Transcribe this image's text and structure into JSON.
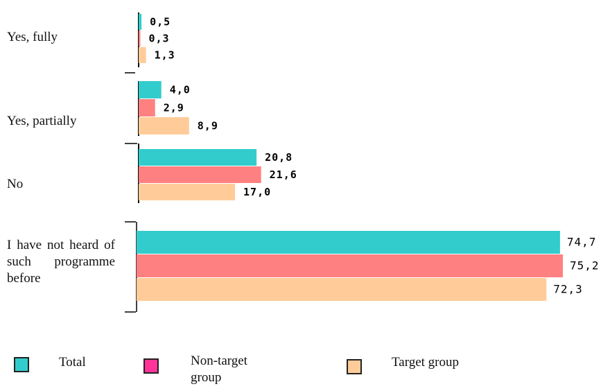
{
  "chart_data": {
    "type": "bar",
    "orientation": "horizontal",
    "categories": [
      "Yes, fully",
      "Yes, partially",
      "No",
      "I have not heard of such programme before"
    ],
    "series": [
      {
        "name": "Total",
        "color": "#33cccc",
        "legend_color": "#33cccc",
        "values": [
          0.5,
          4.0,
          20.8,
          74.7
        ],
        "value_labels": [
          "0,5",
          "4,0",
          "20,8",
          "74,7"
        ]
      },
      {
        "name": "Non-target group",
        "color": "#ff8080",
        "legend_color": "#ff3399",
        "values": [
          0.3,
          2.9,
          21.6,
          75.2
        ],
        "value_labels": [
          "0,3",
          "2,9",
          "21,6",
          "75,2"
        ]
      },
      {
        "name": "Target group",
        "color": "#ffcc99",
        "legend_color": "#ffcc99",
        "values": [
          1.3,
          8.9,
          17.0,
          72.3
        ],
        "value_labels": [
          "1,3",
          "8,9",
          "17,0",
          "72,3"
        ]
      }
    ]
  }
}
